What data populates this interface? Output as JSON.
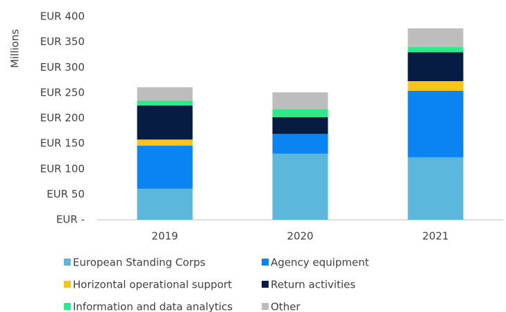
{
  "chart_data": {
    "type": "stacked_bar",
    "y_label": "Millions",
    "categories": [
      "2019",
      "2020",
      "2021"
    ],
    "series": [
      {
        "name": "European Standing Corps",
        "color": "#5bb8dc",
        "values": [
          61,
          130,
          123
        ]
      },
      {
        "name": "Agency equipment",
        "color": "#0a84f0",
        "values": [
          85,
          39,
          131
        ]
      },
      {
        "name": "Horizontal operational support",
        "color": "#fcc419",
        "values": [
          12,
          0,
          19
        ]
      },
      {
        "name": "Return activities",
        "color": "#061c43",
        "values": [
          67,
          33,
          57
        ]
      },
      {
        "name": "Information and data analytics",
        "color": "#2ee88a",
        "values": [
          10,
          16,
          10
        ]
      },
      {
        "name": "Other",
        "color": "#bdbdbd",
        "values": [
          26,
          33,
          37
        ]
      }
    ],
    "ylim": [
      0,
      400
    ],
    "yticks": [
      {
        "value": 0,
        "label": "EUR -"
      },
      {
        "value": 50,
        "label": "EUR 50"
      },
      {
        "value": 100,
        "label": "EUR 100"
      },
      {
        "value": 150,
        "label": "EUR 150"
      },
      {
        "value": 200,
        "label": "EUR 200"
      },
      {
        "value": 250,
        "label": "EUR 250"
      },
      {
        "value": 300,
        "label": "EUR 300"
      },
      {
        "value": 350,
        "label": "EUR 350"
      },
      {
        "value": 400,
        "label": "EUR 400"
      }
    ],
    "grid": false,
    "legend": "bottom"
  }
}
